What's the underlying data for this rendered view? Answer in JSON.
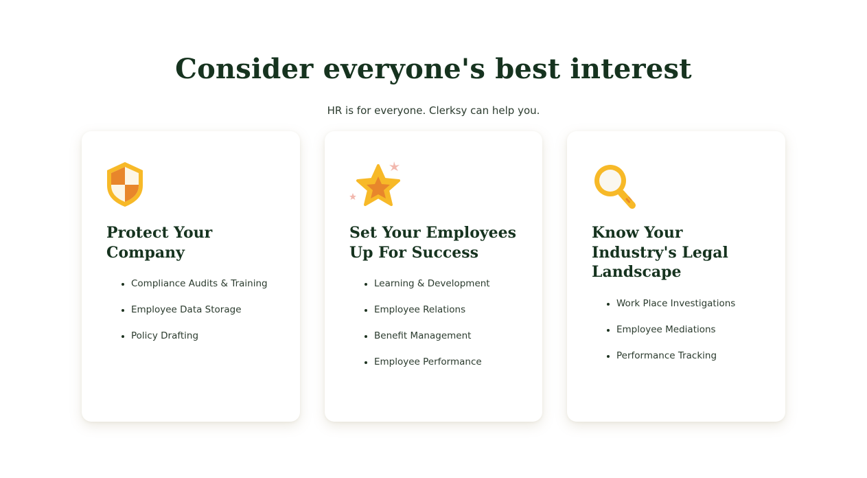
{
  "section": {
    "headline": "Consider everyone's best interest",
    "subheadline": "HR is for everyone. Clerksy can help you."
  },
  "cards": [
    {
      "icon": "shield-icon",
      "title": "Protect Your Company",
      "items": [
        "Compliance Audits & Training",
        "Employee Data Storage",
        "Policy Drafting"
      ]
    },
    {
      "icon": "star-icon",
      "title": "Set Your Employees Up For Success",
      "items": [
        "Learning & Development",
        "Employee Relations",
        "Benefit Management",
        "Employee Performance"
      ]
    },
    {
      "icon": "magnifying-glass-icon",
      "title": "Know Your Industry's Legal Landscape",
      "items": [
        "Work Place Investigations",
        "Employee Mediations",
        "Performance Tracking"
      ]
    }
  ],
  "colors": {
    "heading": "#16331f",
    "body_text": "#2b3b2e",
    "icon_yellow": "#f7b928",
    "icon_orange": "#e8862b",
    "sparkle_pink": "#f2b8ae"
  }
}
